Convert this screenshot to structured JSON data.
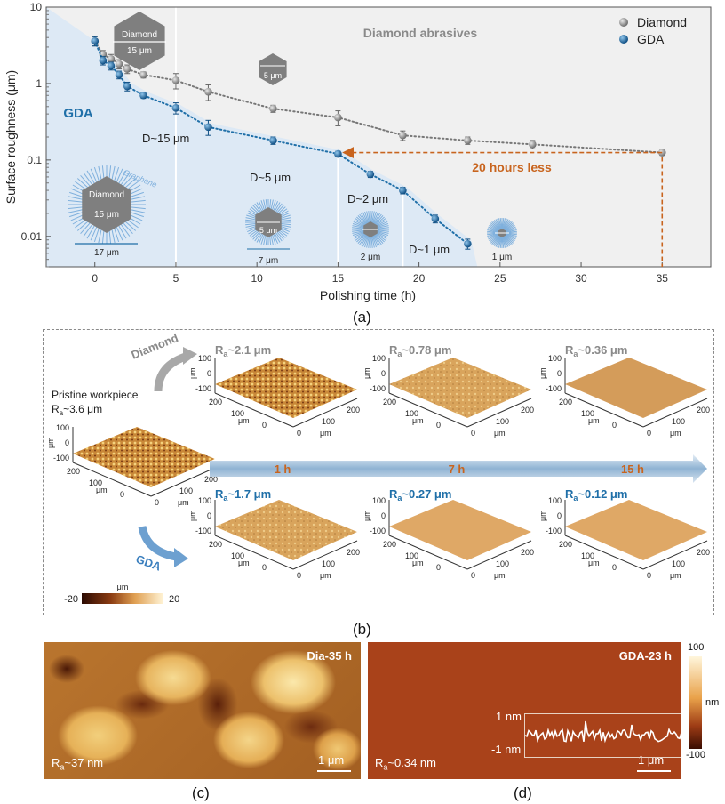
{
  "chart_data": {
    "type": "scatter",
    "xlabel": "Polishing time (h)",
    "ylabel": "Surface roughness (μm)",
    "xlim": [
      -3,
      38
    ],
    "ylim": [
      0.004,
      10
    ],
    "yscale": "log",
    "x_ticks": [
      0,
      5,
      10,
      15,
      20,
      25,
      30,
      35
    ],
    "y_ticks": [
      {
        "v": 10,
        "label": "10"
      },
      {
        "v": 1,
        "label": "1"
      },
      {
        "v": 0.1,
        "label": "0.1"
      },
      {
        "v": 0.01,
        "label": "0.01"
      }
    ],
    "legend_position": "top-right",
    "series": [
      {
        "name": "Diamond",
        "color": "#8c8c8c",
        "x": [
          0,
          0.5,
          1,
          1.5,
          2,
          3,
          5,
          7,
          11,
          15,
          19,
          23,
          27,
          35
        ],
        "y": [
          3.6,
          2.4,
          2.1,
          1.8,
          1.55,
          1.3,
          1.1,
          0.78,
          0.47,
          0.36,
          0.21,
          0.18,
          0.16,
          0.125
        ],
        "err": [
          0.5,
          0.3,
          0.3,
          0.25,
          0.2,
          0.12,
          0.25,
          0.18,
          0.05,
          0.08,
          0.03,
          0.02,
          0.02,
          0.01
        ]
      },
      {
        "name": "GDA",
        "color": "#1f6fa8",
        "x": [
          0,
          0.5,
          1,
          1.5,
          2,
          3,
          5,
          7,
          11,
          15,
          17,
          19,
          21,
          23
        ],
        "y": [
          3.6,
          2.0,
          1.7,
          1.3,
          0.92,
          0.7,
          0.48,
          0.27,
          0.18,
          0.12,
          0.065,
          0.04,
          0.017,
          0.008
        ],
        "err": [
          0.5,
          0.25,
          0.2,
          0.15,
          0.12,
          0.06,
          0.08,
          0.06,
          0.02,
          0.01,
          0.006,
          0.004,
          0.002,
          0.0012
        ]
      }
    ],
    "annotations": {
      "region_diamond": "Diamond abrasives",
      "region_gda": "GDA",
      "graphene": "Graphene",
      "d15": "D~15 μm",
      "d5": "D~5 μm",
      "d2": "D~2 μm",
      "d1": "D~1 μm",
      "less": "20 hours less",
      "hex_diamond_top": "Diamond",
      "hex_15_top": "15 μm",
      "hex_5_top": "5 μm",
      "hex_diamond_bot": "Diamond",
      "hex_15_bot": "15 μm",
      "width_17": "17 μm",
      "hex_5_bot": "5 μm",
      "width_7": "7 μm",
      "width_2": "2 μm",
      "width_1": "1 μm"
    },
    "colors": {
      "diamond_region": "#f0f0f0",
      "gda_region": "#dde9f5",
      "arrow": "#c8641e",
      "gda_line": "#1f6fa8",
      "diamond_line": "#777777"
    }
  },
  "captions": {
    "a": "(a)",
    "b": "(b)",
    "c": "(c)",
    "d": "(d)"
  },
  "panel_b": {
    "diamond_label": "Diamond",
    "gda_label": "GDA",
    "pristine_line1": "Pristine workpiece",
    "pristine_line2": "R",
    "pristine_sub": "a",
    "pristine_val": "~3.6 μm",
    "time_labels": [
      "1 h",
      "7 h",
      "15 h"
    ],
    "diamond_ra": [
      "~2.1 μm",
      "~0.78 μm",
      "~0.36 μm"
    ],
    "gda_ra": [
      "~1.7 μm",
      "~0.27 μm",
      "~0.12 μm"
    ],
    "ra_letter": "R",
    "ra_sub": "a",
    "axis_unit": "μm",
    "z_ticks": [
      "100",
      "0",
      "-100"
    ],
    "xy_ticks": [
      "0",
      "100",
      "200"
    ],
    "colorbar_min": "-20",
    "colorbar_max": "20",
    "colorbar_unit": "μm"
  },
  "panel_c": {
    "tag": "Dia-35 h",
    "ra": "R",
    "ra_sub": "a",
    "ra_val": "~37 nm",
    "scale": "1 μm"
  },
  "panel_d": {
    "tag": "GDA-23 h",
    "ra": "R",
    "ra_sub": "a",
    "ra_val": "~0.34 nm",
    "scale": "1 μm",
    "profile_top": "1 nm",
    "profile_bottom": "-1 nm",
    "cb_max": "100",
    "cb_min": "-100",
    "cb_unit": "nm"
  }
}
